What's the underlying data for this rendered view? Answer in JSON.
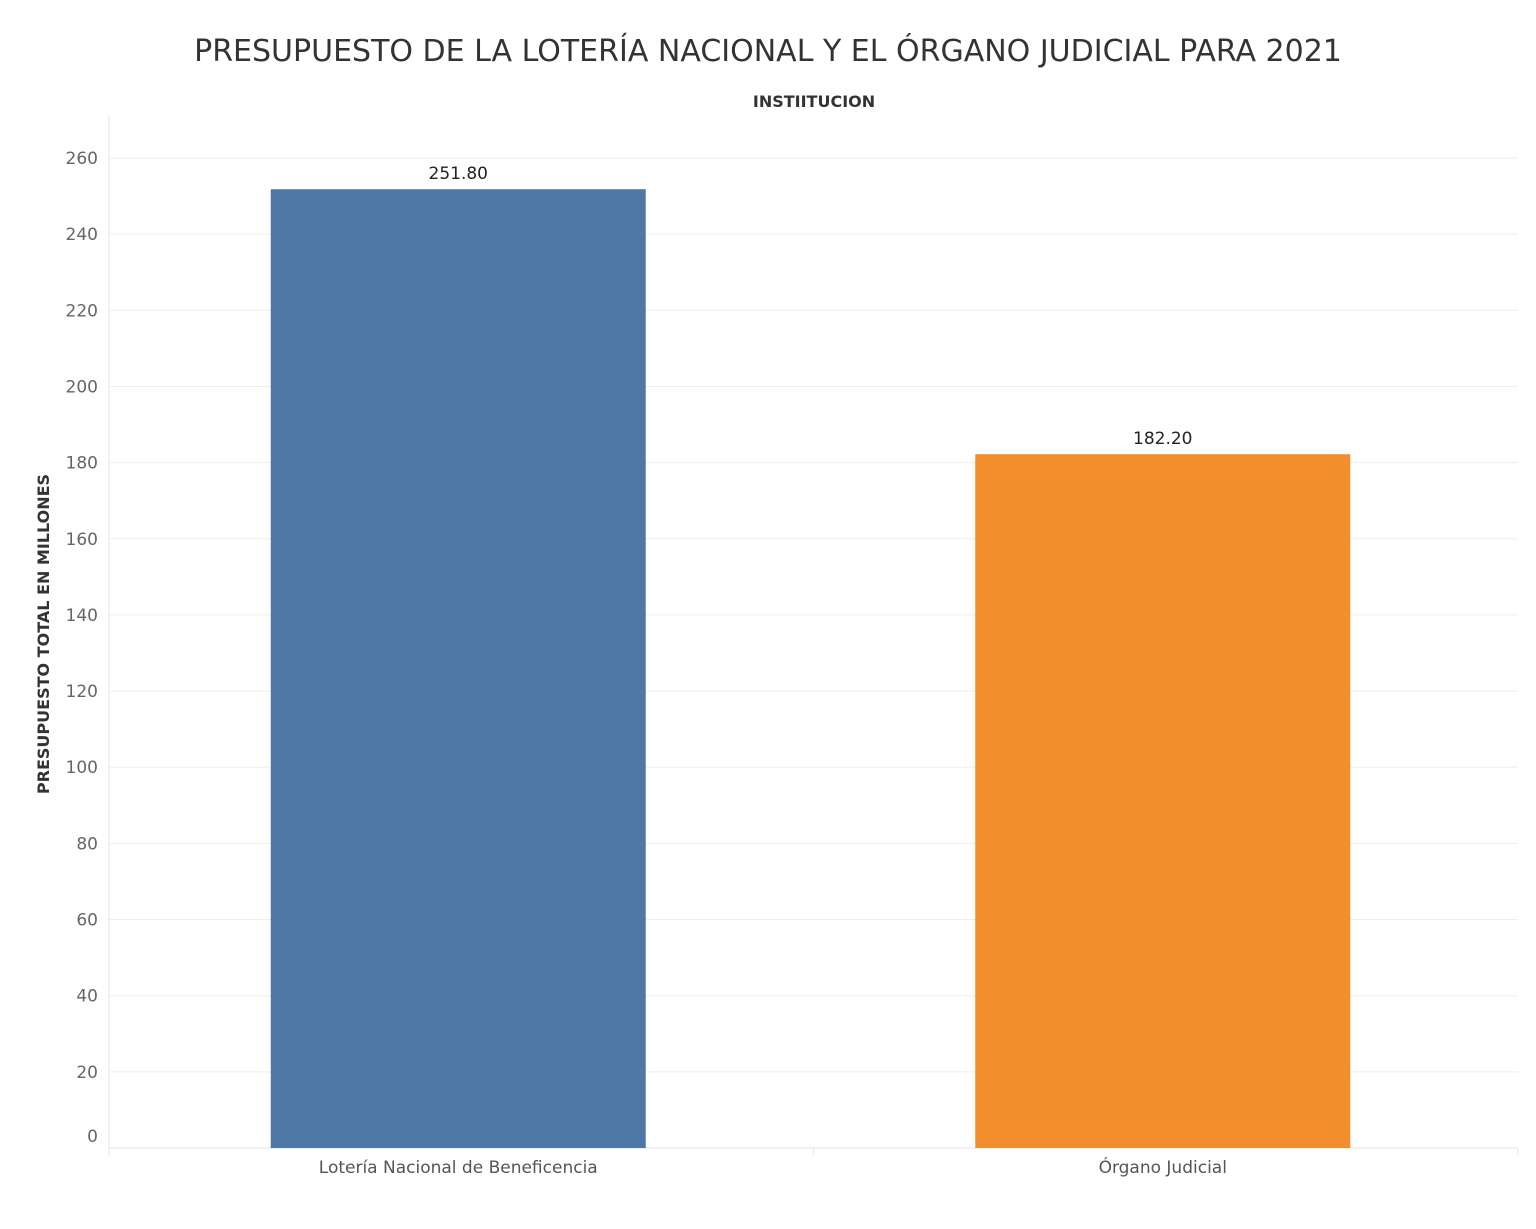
{
  "chart_data": {
    "type": "bar",
    "title": "PRESUPUESTO DE LA LOTERÍA NACIONAL Y EL ÓRGANO JUDICIAL PARA 2021",
    "column_header": "INSTIITUCION",
    "ylabel": "PRESUPUESTO TOTAL  EN MILLONES",
    "xlabel": "",
    "categories": [
      "Lotería Nacional de Beneficencia",
      "Órgano Judicial"
    ],
    "values": [
      251.8,
      182.2
    ],
    "data_labels": [
      "251.80",
      "182.20"
    ],
    "colors": [
      "#4e79a7",
      "#f28e2b"
    ],
    "ylim": [
      0,
      260
    ],
    "yticks": [
      0,
      20,
      40,
      60,
      80,
      100,
      120,
      140,
      160,
      180,
      200,
      220,
      240,
      260
    ],
    "grid": true,
    "legend": "none"
  }
}
